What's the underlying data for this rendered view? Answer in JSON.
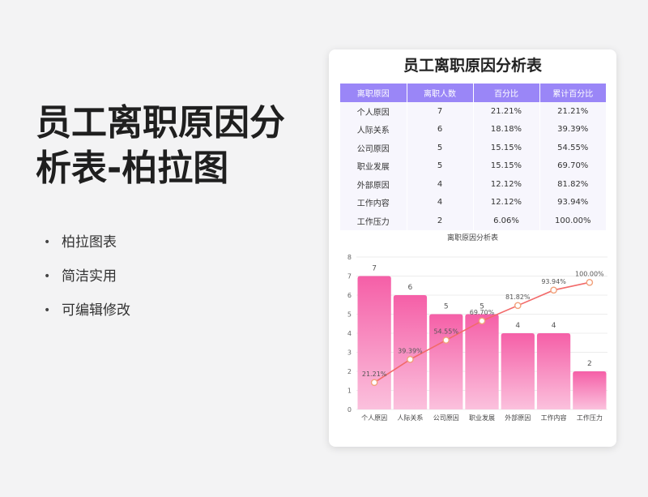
{
  "headline": "员工离职原因分析表-柏拉图",
  "bullets": [
    {
      "label": "柏拉图表"
    },
    {
      "label": "简洁实用"
    },
    {
      "label": "可编辑修改"
    }
  ],
  "card": {
    "title": "员工离职原因分析表",
    "table": {
      "headers": [
        "离职原因",
        "离职人数",
        "百分比",
        "累计百分比"
      ],
      "rows": [
        [
          "个人原因",
          "7",
          "21.21%",
          "21.21%"
        ],
        [
          "人际关系",
          "6",
          "18.18%",
          "39.39%"
        ],
        [
          "公司原因",
          "5",
          "15.15%",
          "54.55%"
        ],
        [
          "职业发展",
          "5",
          "15.15%",
          "69.70%"
        ],
        [
          "外部原因",
          "4",
          "12.12%",
          "81.82%"
        ],
        [
          "工作内容",
          "4",
          "12.12%",
          "93.94%"
        ],
        [
          "工作压力",
          "2",
          "6.06%",
          "100.00%"
        ]
      ]
    }
  },
  "chart_data": {
    "type": "bar",
    "title": "离职原因分析表",
    "categories": [
      "个人原因",
      "人际关系",
      "公司原因",
      "职业发展",
      "外部原因",
      "工作内容",
      "工作压力"
    ],
    "series": [
      {
        "values": [
          7,
          6,
          5,
          5,
          4,
          4,
          2
        ],
        "kind": "bar",
        "color": "#f55fa7"
      },
      {
        "values": [
          21.21,
          39.39,
          54.55,
          69.7,
          81.82,
          93.94,
          100.0
        ],
        "kind": "line",
        "color": "#f26a6a",
        "axis": "secondary"
      }
    ],
    "ylim": [
      0,
      8
    ],
    "yticks": [
      0,
      1,
      2,
      3,
      4,
      5,
      6,
      7,
      8
    ],
    "y2lim": [
      0,
      120
    ],
    "grid": true,
    "legend": "none",
    "bar_labels": [
      "7",
      "6",
      "5",
      "5",
      "4",
      "4",
      "2"
    ],
    "line_labels": [
      "21.21%",
      "39.39%",
      "54.55%",
      "69.70%",
      "81.82%",
      "93.94%",
      "100.00%"
    ]
  }
}
